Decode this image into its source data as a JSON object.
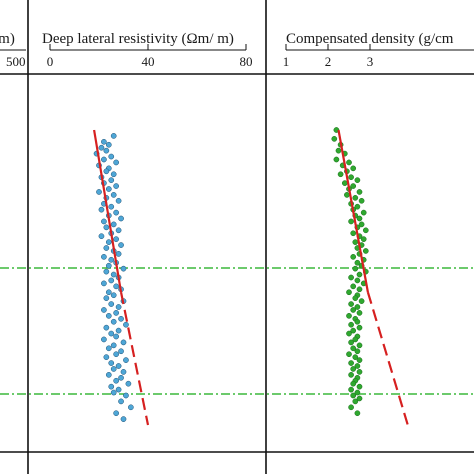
{
  "chart_data": [
    {
      "type": "scatter",
      "panel": "left-partial",
      "title": "/m)",
      "x_tick_labels": [
        "500"
      ],
      "series": []
    },
    {
      "type": "scatter",
      "panel": "deep-lateral-resistivity",
      "title": "Deep lateral resistivity (Ωm/ m)",
      "x_tick_labels": [
        "0",
        "40",
        "80"
      ],
      "xlim": [
        0,
        80
      ],
      "x_ticks": [
        0,
        40,
        80
      ],
      "point_color": "#4ea6d6",
      "trend_color": "#d62020",
      "points": [
        [
          26,
          0.02
        ],
        [
          22,
          0.04
        ],
        [
          24,
          0.05
        ],
        [
          21,
          0.06
        ],
        [
          23,
          0.07
        ],
        [
          19,
          0.08
        ],
        [
          25,
          0.09
        ],
        [
          22,
          0.1
        ],
        [
          27,
          0.11
        ],
        [
          20,
          0.12
        ],
        [
          24,
          0.13
        ],
        [
          23,
          0.14
        ],
        [
          26,
          0.15
        ],
        [
          21,
          0.16
        ],
        [
          25,
          0.17
        ],
        [
          22,
          0.18
        ],
        [
          27,
          0.19
        ],
        [
          24,
          0.2
        ],
        [
          20,
          0.21
        ],
        [
          26,
          0.22
        ],
        [
          23,
          0.23
        ],
        [
          28,
          0.24
        ],
        [
          22,
          0.25
        ],
        [
          25,
          0.26
        ],
        [
          21,
          0.27
        ],
        [
          27,
          0.28
        ],
        [
          24,
          0.29
        ],
        [
          29,
          0.3
        ],
        [
          22,
          0.31
        ],
        [
          26,
          0.32
        ],
        [
          23,
          0.33
        ],
        [
          28,
          0.34
        ],
        [
          25,
          0.35
        ],
        [
          21,
          0.36
        ],
        [
          27,
          0.37
        ],
        [
          24,
          0.38
        ],
        [
          29,
          0.39
        ],
        [
          23,
          0.4
        ],
        [
          26,
          0.41
        ],
        [
          28,
          0.42
        ],
        [
          22,
          0.43
        ],
        [
          25,
          0.44
        ],
        [
          27,
          0.45
        ],
        [
          24,
          0.46
        ],
        [
          30,
          0.47
        ],
        [
          23,
          0.48
        ],
        [
          26,
          0.49
        ],
        [
          28,
          0.5
        ],
        [
          25,
          0.51
        ],
        [
          22,
          0.52
        ],
        [
          27,
          0.53
        ],
        [
          29,
          0.54
        ],
        [
          24,
          0.55
        ],
        [
          26,
          0.56
        ],
        [
          23,
          0.57
        ],
        [
          30,
          0.58
        ],
        [
          25,
          0.59
        ],
        [
          28,
          0.6
        ],
        [
          22,
          0.61
        ],
        [
          27,
          0.62
        ],
        [
          24,
          0.63
        ],
        [
          29,
          0.64
        ],
        [
          26,
          0.65
        ],
        [
          31,
          0.66
        ],
        [
          23,
          0.67
        ],
        [
          28,
          0.68
        ],
        [
          25,
          0.69
        ],
        [
          27,
          0.7
        ],
        [
          22,
          0.71
        ],
        [
          30,
          0.72
        ],
        [
          26,
          0.73
        ],
        [
          24,
          0.74
        ],
        [
          29,
          0.75
        ],
        [
          27,
          0.76
        ],
        [
          23,
          0.77
        ],
        [
          31,
          0.78
        ],
        [
          25,
          0.79
        ],
        [
          28,
          0.8
        ],
        [
          26,
          0.81
        ],
        [
          30,
          0.82
        ],
        [
          24,
          0.83
        ],
        [
          29,
          0.84
        ],
        [
          27,
          0.85
        ],
        [
          32,
          0.86
        ],
        [
          25,
          0.87
        ],
        [
          28,
          0.88
        ],
        [
          26,
          0.89
        ],
        [
          31,
          0.9
        ],
        [
          29,
          0.92
        ],
        [
          33,
          0.94
        ],
        [
          27,
          0.96
        ],
        [
          30,
          0.98
        ]
      ],
      "trend_solid": [
        [
          18,
          0.0
        ],
        [
          29,
          0.55
        ]
      ],
      "trend_dashed": [
        [
          29,
          0.55
        ],
        [
          40,
          1.0
        ]
      ]
    },
    {
      "type": "scatter",
      "panel": "compensated-density",
      "title": "Compensated density (g/cm",
      "x_tick_labels": [
        "1",
        "2",
        "3"
      ],
      "xlim": [
        1,
        4
      ],
      "x_ticks": [
        1,
        2,
        3
      ],
      "point_color": "#2fa82f",
      "trend_color": "#d62020",
      "points": [
        [
          2.2,
          0.0
        ],
        [
          2.15,
          0.03
        ],
        [
          2.3,
          0.05
        ],
        [
          2.25,
          0.07
        ],
        [
          2.4,
          0.08
        ],
        [
          2.2,
          0.1
        ],
        [
          2.5,
          0.11
        ],
        [
          2.35,
          0.12
        ],
        [
          2.6,
          0.13
        ],
        [
          2.45,
          0.14
        ],
        [
          2.3,
          0.15
        ],
        [
          2.55,
          0.16
        ],
        [
          2.7,
          0.17
        ],
        [
          2.4,
          0.18
        ],
        [
          2.6,
          0.19
        ],
        [
          2.5,
          0.2
        ],
        [
          2.75,
          0.21
        ],
        [
          2.45,
          0.22
        ],
        [
          2.65,
          0.23
        ],
        [
          2.8,
          0.24
        ],
        [
          2.55,
          0.25
        ],
        [
          2.7,
          0.26
        ],
        [
          2.6,
          0.27
        ],
        [
          2.85,
          0.28
        ],
        [
          2.65,
          0.29
        ],
        [
          2.75,
          0.3
        ],
        [
          2.55,
          0.31
        ],
        [
          2.8,
          0.32
        ],
        [
          2.7,
          0.33
        ],
        [
          2.9,
          0.34
        ],
        [
          2.6,
          0.35
        ],
        [
          2.75,
          0.36
        ],
        [
          2.85,
          0.37
        ],
        [
          2.65,
          0.38
        ],
        [
          2.8,
          0.39
        ],
        [
          2.7,
          0.4
        ],
        [
          2.9,
          0.41
        ],
        [
          2.75,
          0.42
        ],
        [
          2.6,
          0.43
        ],
        [
          2.85,
          0.44
        ],
        [
          2.7,
          0.45
        ],
        [
          2.8,
          0.46
        ],
        [
          2.65,
          0.47
        ],
        [
          2.9,
          0.48
        ],
        [
          2.75,
          0.49
        ],
        [
          2.55,
          0.5
        ],
        [
          2.7,
          0.51
        ],
        [
          2.85,
          0.52
        ],
        [
          2.6,
          0.53
        ],
        [
          2.75,
          0.54
        ],
        [
          2.5,
          0.55
        ],
        [
          2.7,
          0.56
        ],
        [
          2.65,
          0.57
        ],
        [
          2.8,
          0.58
        ],
        [
          2.55,
          0.59
        ],
        [
          2.7,
          0.6
        ],
        [
          2.6,
          0.61
        ],
        [
          2.75,
          0.62
        ],
        [
          2.5,
          0.63
        ],
        [
          2.65,
          0.64
        ],
        [
          2.7,
          0.65
        ],
        [
          2.55,
          0.66
        ],
        [
          2.75,
          0.67
        ],
        [
          2.6,
          0.68
        ],
        [
          2.5,
          0.69
        ],
        [
          2.7,
          0.7
        ],
        [
          2.65,
          0.71
        ],
        [
          2.55,
          0.72
        ],
        [
          2.75,
          0.73
        ],
        [
          2.6,
          0.74
        ],
        [
          2.7,
          0.75
        ],
        [
          2.5,
          0.76
        ],
        [
          2.65,
          0.77
        ],
        [
          2.75,
          0.78
        ],
        [
          2.55,
          0.79
        ],
        [
          2.7,
          0.8
        ],
        [
          2.6,
          0.81
        ],
        [
          2.75,
          0.82
        ],
        [
          2.55,
          0.83
        ],
        [
          2.7,
          0.84
        ],
        [
          2.65,
          0.85
        ],
        [
          2.6,
          0.86
        ],
        [
          2.75,
          0.87
        ],
        [
          2.55,
          0.88
        ],
        [
          2.7,
          0.89
        ],
        [
          2.6,
          0.9
        ],
        [
          2.75,
          0.91
        ],
        [
          2.65,
          0.92
        ],
        [
          2.55,
          0.94
        ],
        [
          2.7,
          0.96
        ]
      ],
      "trend_solid": [
        [
          2.25,
          0.0
        ],
        [
          2.95,
          0.55
        ]
      ],
      "trend_dashed": [
        [
          2.95,
          0.55
        ],
        [
          3.9,
          1.0
        ]
      ]
    }
  ],
  "reference_lines": {
    "color": "#3cb83c",
    "depths": [
      0.55,
      1.08
    ]
  }
}
